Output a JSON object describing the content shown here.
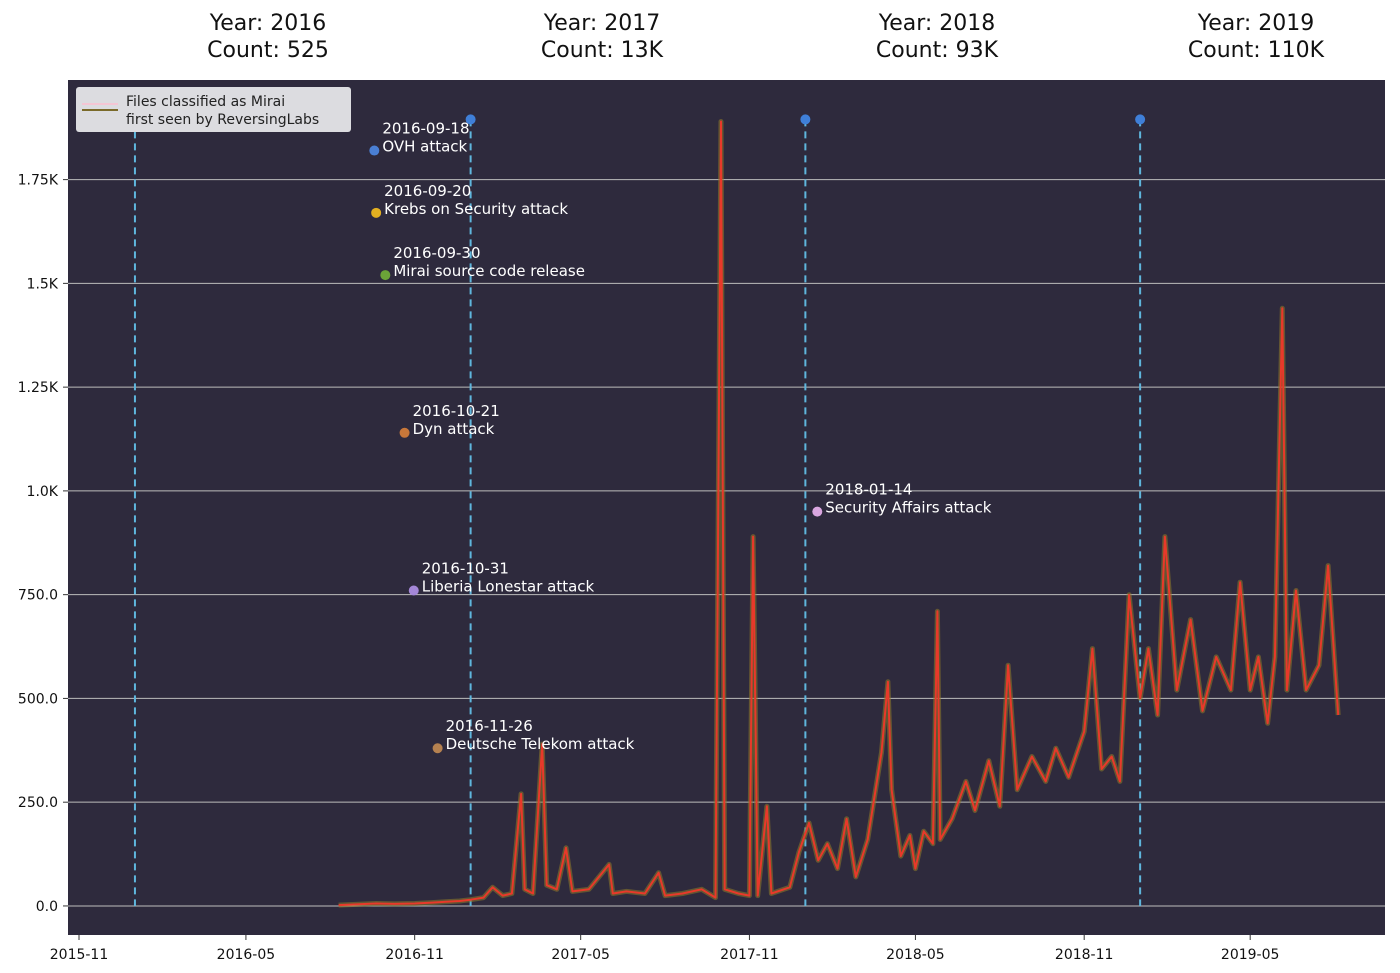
{
  "colors": {
    "plot_background": "#2e2a3d",
    "gridline": "#bdbdbd",
    "series_line": "#e8392a",
    "series_glow": "#8f7a2a",
    "year_divider": "#5fb6dd",
    "year_marker": "#3f7fd8"
  },
  "year_headers": [
    {
      "year_label": "Year: 2016",
      "count_label": "Count: 525"
    },
    {
      "year_label": "Year: 2017",
      "count_label": "Count: 13K"
    },
    {
      "year_label": "Year: 2018",
      "count_label": "Count: 93K"
    },
    {
      "year_label": "Year: 2019",
      "count_label": "Count: 110K"
    }
  ],
  "legend": {
    "line1": "Files classified as Mirai",
    "line2": "first seen by ReversingLabs"
  },
  "chart_data": {
    "type": "line",
    "title": "",
    "xlabel": "",
    "ylabel": "",
    "xlim": [
      "2015-10-20",
      "2019-09-25"
    ],
    "ylim": [
      -70,
      1990
    ],
    "grid": "horizontal",
    "legend_position": "top-left",
    "y_ticks": [
      0,
      250,
      500,
      750,
      1000,
      1250,
      1500,
      1750
    ],
    "y_tick_labels": [
      "0.0",
      "250.0",
      "500.0",
      "750.0",
      "1.0K",
      "1.25K",
      "1.5K",
      "1.75K"
    ],
    "x_ticks": [
      "2015-11-01",
      "2016-05-01",
      "2016-11-01",
      "2017-05-01",
      "2017-11-01",
      "2018-05-01",
      "2018-11-01",
      "2019-05-01"
    ],
    "x_tick_labels": [
      "2015-11",
      "2016-05",
      "2016-11",
      "2017-05",
      "2017-11",
      "2018-05",
      "2018-11",
      "2019-05"
    ],
    "year_dividers": [
      "2016-01-01",
      "2017-01-01",
      "2018-01-01",
      "2019-01-01"
    ],
    "series": [
      {
        "name": "Files classified as Mirai first seen by ReversingLabs",
        "points": [
          [
            "2016-08-10",
            2
          ],
          [
            "2016-09-01",
            4
          ],
          [
            "2016-09-20",
            6
          ],
          [
            "2016-10-10",
            5
          ],
          [
            "2016-11-01",
            6
          ],
          [
            "2016-11-20",
            8
          ],
          [
            "2016-12-05",
            10
          ],
          [
            "2016-12-20",
            12
          ],
          [
            "2017-01-01",
            15
          ],
          [
            "2017-01-15",
            20
          ],
          [
            "2017-01-25",
            45
          ],
          [
            "2017-02-05",
            25
          ],
          [
            "2017-02-15",
            30
          ],
          [
            "2017-02-25",
            270
          ],
          [
            "2017-03-01",
            40
          ],
          [
            "2017-03-10",
            30
          ],
          [
            "2017-03-20",
            390
          ],
          [
            "2017-03-25",
            50
          ],
          [
            "2017-04-05",
            40
          ],
          [
            "2017-04-15",
            140
          ],
          [
            "2017-04-22",
            35
          ],
          [
            "2017-05-10",
            40
          ],
          [
            "2017-06-01",
            100
          ],
          [
            "2017-06-05",
            30
          ],
          [
            "2017-06-20",
            35
          ],
          [
            "2017-07-10",
            30
          ],
          [
            "2017-07-25",
            80
          ],
          [
            "2017-08-01",
            25
          ],
          [
            "2017-08-20",
            30
          ],
          [
            "2017-09-10",
            40
          ],
          [
            "2017-09-25",
            20
          ],
          [
            "2017-10-01",
            1890
          ],
          [
            "2017-10-05",
            40
          ],
          [
            "2017-10-20",
            30
          ],
          [
            "2017-11-01",
            25
          ],
          [
            "2017-11-05",
            890
          ],
          [
            "2017-11-10",
            25
          ],
          [
            "2017-11-20",
            240
          ],
          [
            "2017-11-25",
            30
          ],
          [
            "2017-12-15",
            45
          ],
          [
            "2017-12-25",
            130
          ],
          [
            "2018-01-05",
            200
          ],
          [
            "2018-01-15",
            110
          ],
          [
            "2018-01-25",
            150
          ],
          [
            "2018-02-05",
            90
          ],
          [
            "2018-02-15",
            210
          ],
          [
            "2018-02-25",
            70
          ],
          [
            "2018-03-10",
            160
          ],
          [
            "2018-03-25",
            370
          ],
          [
            "2018-04-01",
            540
          ],
          [
            "2018-04-05",
            280
          ],
          [
            "2018-04-15",
            120
          ],
          [
            "2018-04-25",
            170
          ],
          [
            "2018-05-01",
            90
          ],
          [
            "2018-05-10",
            180
          ],
          [
            "2018-05-20",
            150
          ],
          [
            "2018-05-25",
            710
          ],
          [
            "2018-05-28",
            160
          ],
          [
            "2018-06-10",
            210
          ],
          [
            "2018-06-25",
            300
          ],
          [
            "2018-07-05",
            230
          ],
          [
            "2018-07-20",
            350
          ],
          [
            "2018-08-01",
            240
          ],
          [
            "2018-08-10",
            580
          ],
          [
            "2018-08-20",
            280
          ],
          [
            "2018-09-05",
            360
          ],
          [
            "2018-09-20",
            300
          ],
          [
            "2018-10-01",
            380
          ],
          [
            "2018-10-15",
            310
          ],
          [
            "2018-11-01",
            420
          ],
          [
            "2018-11-10",
            620
          ],
          [
            "2018-11-20",
            330
          ],
          [
            "2018-12-01",
            360
          ],
          [
            "2018-12-10",
            300
          ],
          [
            "2018-12-20",
            750
          ],
          [
            "2019-01-01",
            500
          ],
          [
            "2019-01-10",
            620
          ],
          [
            "2019-01-20",
            460
          ],
          [
            "2019-01-28",
            890
          ],
          [
            "2019-02-10",
            520
          ],
          [
            "2019-02-25",
            690
          ],
          [
            "2019-03-10",
            470
          ],
          [
            "2019-03-25",
            600
          ],
          [
            "2019-04-10",
            520
          ],
          [
            "2019-04-20",
            780
          ],
          [
            "2019-05-01",
            520
          ],
          [
            "2019-05-10",
            600
          ],
          [
            "2019-05-20",
            440
          ],
          [
            "2019-05-28",
            600
          ],
          [
            "2019-06-05",
            1440
          ],
          [
            "2019-06-10",
            520
          ],
          [
            "2019-06-20",
            760
          ],
          [
            "2019-07-01",
            520
          ],
          [
            "2019-07-15",
            580
          ],
          [
            "2019-07-25",
            820
          ],
          [
            "2019-08-05",
            460
          ]
        ]
      }
    ],
    "annotations": [
      {
        "date": "2016-09-18",
        "y": 1820,
        "color": "#4a7fd4",
        "line1": "2016-09-18",
        "line2": "OVH attack"
      },
      {
        "date": "2016-09-20",
        "y": 1670,
        "color": "#e3b021",
        "line1": "2016-09-20",
        "line2": "Krebs on Security attack"
      },
      {
        "date": "2016-09-30",
        "y": 1520,
        "color": "#6ba338",
        "line1": "2016-09-30",
        "line2": "Mirai source code release"
      },
      {
        "date": "2016-10-21",
        "y": 1140,
        "color": "#c7773a",
        "line1": "2016-10-21",
        "line2": "Dyn attack"
      },
      {
        "date": "2016-10-31",
        "y": 760,
        "color": "#a487d8",
        "line1": "2016-10-31",
        "line2": "Liberia Lonestar attack"
      },
      {
        "date": "2016-11-26",
        "y": 380,
        "color": "#b58150",
        "line1": "2016-11-26",
        "line2": "Deutsche Telekom attack"
      },
      {
        "date": "2018-01-14",
        "y": 950,
        "color": "#d9a6e0",
        "line1": "2018-01-14",
        "line2": "Security Affairs attack"
      }
    ]
  }
}
